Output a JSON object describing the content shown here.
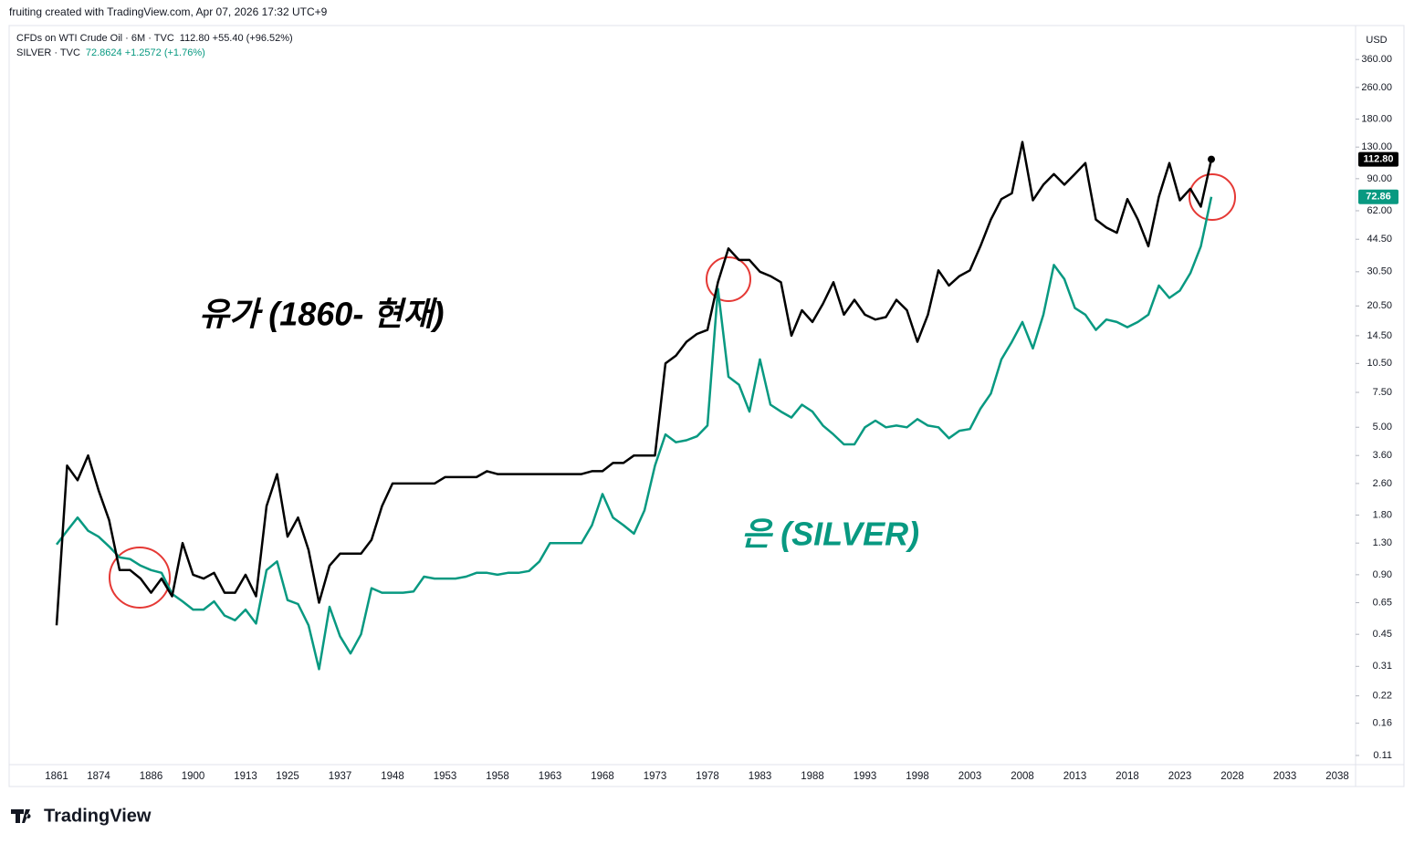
{
  "header": {
    "credit": "fruiting created with TradingView.com, Apr 07, 2026 17:32 UTC+9",
    "brand": "TradingView"
  },
  "chart_data": {
    "type": "line",
    "log_scale": true,
    "grid": false,
    "currency": "USD",
    "annotations": [
      "유가 (1860- 현재)",
      "은 (SILVER)"
    ],
    "categories": [
      "1861",
      null,
      null,
      null,
      "1874",
      null,
      null,
      null,
      null,
      "1886",
      null,
      null,
      null,
      "1900",
      null,
      null,
      null,
      null,
      "1913",
      null,
      null,
      null,
      "1925",
      null,
      null,
      null,
      null,
      "1937",
      null,
      null,
      null,
      null,
      "1948",
      null,
      null,
      null,
      null,
      "1953",
      null,
      null,
      null,
      null,
      "1958",
      null,
      null,
      null,
      null,
      "1963",
      null,
      null,
      null,
      null,
      "1968",
      null,
      null,
      null,
      null,
      "1973",
      null,
      null,
      null,
      null,
      "1978",
      null,
      null,
      null,
      null,
      "1983",
      null,
      null,
      null,
      null,
      "1988",
      null,
      null,
      null,
      null,
      "1993",
      null,
      null,
      null,
      null,
      "1998",
      null,
      null,
      null,
      null,
      "2003",
      null,
      null,
      null,
      null,
      "2008",
      null,
      null,
      null,
      null,
      "2013",
      null,
      null,
      null,
      null,
      "2018",
      null,
      null,
      null,
      null,
      "2023",
      null,
      null,
      null,
      null,
      "2028",
      null,
      null,
      null,
      null,
      "2033",
      null,
      null,
      null,
      null,
      "2038"
    ],
    "series": [
      {
        "name": "CFDs on WTI Crude Oil · 6M · TVC",
        "legend_values": "112.80 +55.40 (+96.52%)",
        "last_value_label": "112.80",
        "color": "#000000",
        "values": [
          0.5,
          3.2,
          2.7,
          3.6,
          2.4,
          1.7,
          0.95,
          0.95,
          0.86,
          0.73,
          0.86,
          0.7,
          1.3,
          0.9,
          0.86,
          0.92,
          0.73,
          0.73,
          0.9,
          0.7,
          2.0,
          2.9,
          1.4,
          1.75,
          1.2,
          0.65,
          1.0,
          1.15,
          1.15,
          1.15,
          1.35,
          2.0,
          2.6,
          2.6,
          2.6,
          2.6,
          2.6,
          2.8,
          2.8,
          2.8,
          2.8,
          3.0,
          2.9,
          2.9,
          2.9,
          2.9,
          2.9,
          2.9,
          2.9,
          2.9,
          2.9,
          3.0,
          3.0,
          3.3,
          3.3,
          3.6,
          3.6,
          3.6,
          10.5,
          11.5,
          13.5,
          14.8,
          15.5,
          27,
          40,
          35,
          35,
          30.5,
          29,
          27,
          14.5,
          19.5,
          17,
          21,
          27,
          18.5,
          22,
          18.5,
          17.5,
          18,
          22,
          19.5,
          13.5,
          18.5,
          31,
          26,
          29,
          31,
          41,
          56,
          71,
          76,
          138,
          70,
          84,
          95,
          84,
          95,
          108,
          56,
          51,
          48,
          71,
          56,
          41,
          73,
          108,
          70,
          80,
          65,
          112.8,
          null,
          null,
          null,
          null,
          null,
          null,
          null,
          null,
          null,
          null,
          null,
          null
        ]
      },
      {
        "name": "SILVER · TVC",
        "legend_values": "72.8624 +1.2572 (+1.76%)",
        "last_value_label": "72.86",
        "color": "#089981",
        "values": [
          1.28,
          1.5,
          1.75,
          1.5,
          1.4,
          1.25,
          1.1,
          1.08,
          1.0,
          0.95,
          0.92,
          0.72,
          0.66,
          0.6,
          0.6,
          0.66,
          0.56,
          0.53,
          0.6,
          0.51,
          0.95,
          1.05,
          0.67,
          0.64,
          0.5,
          0.3,
          0.62,
          0.44,
          0.36,
          0.45,
          0.77,
          0.73,
          0.73,
          0.73,
          0.74,
          0.88,
          0.86,
          0.86,
          0.86,
          0.88,
          0.92,
          0.92,
          0.9,
          0.92,
          0.92,
          0.94,
          1.05,
          1.3,
          1.3,
          1.3,
          1.3,
          1.6,
          2.3,
          1.75,
          1.6,
          1.45,
          1.9,
          3.2,
          4.6,
          4.2,
          4.3,
          4.5,
          5.1,
          25,
          9,
          8.2,
          6,
          11,
          6.5,
          6,
          5.6,
          6.5,
          6,
          5.1,
          4.6,
          4.1,
          4.1,
          5,
          5.4,
          5,
          5.1,
          5,
          5.5,
          5.1,
          5,
          4.4,
          4.8,
          4.9,
          6.2,
          7.4,
          11,
          13.5,
          17,
          12.5,
          18.5,
          33,
          28,
          20,
          18.5,
          15.5,
          17.5,
          17,
          16,
          17,
          18.5,
          26,
          22.5,
          24.5,
          30,
          41,
          72.86,
          null,
          null,
          null,
          null,
          null,
          null,
          null,
          null,
          null,
          null,
          null,
          null
        ]
      }
    ],
    "ylim": [
      0.101,
      523
    ],
    "yticks": [
      {
        "value": 0.11,
        "label": "0.11"
      },
      {
        "value": 0.16,
        "label": "0.16"
      },
      {
        "value": 0.22,
        "label": "0.22"
      },
      {
        "value": 0.31,
        "label": "0.31"
      },
      {
        "value": 0.45,
        "label": "0.45"
      },
      {
        "value": 0.65,
        "label": "0.65"
      },
      {
        "value": 0.9,
        "label": "0.90"
      },
      {
        "value": 1.3,
        "label": "1.30"
      },
      {
        "value": 1.8,
        "label": "1.80"
      },
      {
        "value": 2.6,
        "label": "2.60"
      },
      {
        "value": 3.6,
        "label": "3.60"
      },
      {
        "value": 5,
        "label": "5.00"
      },
      {
        "value": 7.5,
        "label": "7.50"
      },
      {
        "value": 10.5,
        "label": "10.50"
      },
      {
        "value": 14.5,
        "label": "14.50"
      },
      {
        "value": 20.5,
        "label": "20.50"
      },
      {
        "value": 30.5,
        "label": "30.50"
      },
      {
        "value": 44.5,
        "label": "44.50"
      },
      {
        "value": 62,
        "label": "62.00"
      },
      {
        "value": 90,
        "label": "90.00"
      },
      {
        "value": 130,
        "label": "130.00"
      },
      {
        "value": 180,
        "label": "180.00"
      },
      {
        "value": 260,
        "label": "260.00"
      },
      {
        "value": 360,
        "label": "360.00"
      }
    ]
  }
}
